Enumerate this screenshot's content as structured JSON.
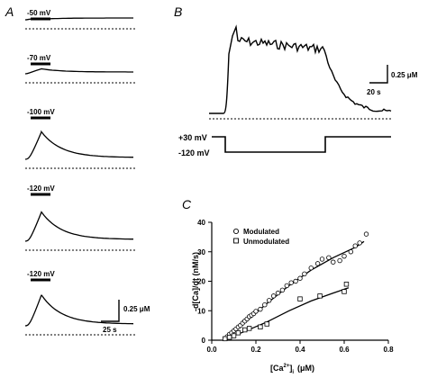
{
  "panel_labels": {
    "a": "A",
    "b": "B",
    "c": "C"
  },
  "panel_a": {
    "traces": [
      {
        "voltage_label": "-50 mV",
        "peak": 0.07
      },
      {
        "voltage_label": "-70 mV",
        "peak": 0.12
      },
      {
        "voltage_label": "-100 mV",
        "peak": 0.38
      },
      {
        "voltage_label": "-120 mV",
        "peak": 0.4
      },
      {
        "voltage_label": "-120 mV",
        "peak": 0.42
      }
    ],
    "scale_y_label": "0.25 μM",
    "scale_x_label": "25 s"
  },
  "panel_b": {
    "scale_y_label": "0.25 μM",
    "scale_x_label": "20 s",
    "protocol": {
      "holding_label": "+30 mV",
      "step_label": "-120 mV"
    }
  },
  "chart_data": {
    "type": "scatter",
    "title": "",
    "xlabel": "[Ca2+]i (μM)",
    "xlabel_parts": {
      "main": "[Ca",
      "sup": "2+",
      "close": "]",
      "sub": "i",
      "unit": "(μM)"
    },
    "ylabel": "-d[Ca]/dt (nM/s)",
    "xlim": [
      0,
      0.8
    ],
    "ylim": [
      0,
      40
    ],
    "x_ticks": [
      "0.0",
      "0.2",
      "0.4",
      "0.6",
      "0.8"
    ],
    "y_ticks": [
      "0",
      "10",
      "20",
      "30",
      "40"
    ],
    "legend_position": "top-left",
    "series": [
      {
        "name": "Modulated",
        "marker": "circle",
        "points": [
          [
            0.06,
            0.5
          ],
          [
            0.07,
            1.2
          ],
          [
            0.08,
            2.0
          ],
          [
            0.09,
            2.5
          ],
          [
            0.1,
            3.2
          ],
          [
            0.11,
            3.8
          ],
          [
            0.12,
            4.5
          ],
          [
            0.13,
            5.0
          ],
          [
            0.14,
            5.8
          ],
          [
            0.15,
            6.5
          ],
          [
            0.16,
            7.2
          ],
          [
            0.17,
            8.0
          ],
          [
            0.18,
            8.5
          ],
          [
            0.19,
            9.0
          ],
          [
            0.2,
            9.8
          ],
          [
            0.22,
            10.5
          ],
          [
            0.24,
            12.0
          ],
          [
            0.26,
            13.5
          ],
          [
            0.28,
            15.0
          ],
          [
            0.3,
            16.0
          ],
          [
            0.32,
            17.0
          ],
          [
            0.34,
            18.5
          ],
          [
            0.36,
            19.5
          ],
          [
            0.38,
            20.0
          ],
          [
            0.4,
            21.0
          ],
          [
            0.42,
            22.5
          ],
          [
            0.45,
            24.5
          ],
          [
            0.48,
            26.0
          ],
          [
            0.5,
            27.5
          ],
          [
            0.53,
            28.0
          ],
          [
            0.55,
            26.5
          ],
          [
            0.58,
            27.0
          ],
          [
            0.6,
            28.5
          ],
          [
            0.63,
            30.0
          ],
          [
            0.65,
            32.0
          ],
          [
            0.67,
            33.0
          ],
          [
            0.7,
            36.0
          ]
        ],
        "fit": [
          [
            0.05,
            0.0
          ],
          [
            0.15,
            6.0
          ],
          [
            0.25,
            12.5
          ],
          [
            0.35,
            18.5
          ],
          [
            0.45,
            23.8
          ],
          [
            0.55,
            28.0
          ],
          [
            0.65,
            31.5
          ],
          [
            0.69,
            33.5
          ]
        ]
      },
      {
        "name": "Unmodulated",
        "marker": "square",
        "points": [
          [
            0.06,
            0.5
          ],
          [
            0.08,
            1.0
          ],
          [
            0.1,
            1.5
          ],
          [
            0.12,
            2.5
          ],
          [
            0.15,
            3.5
          ],
          [
            0.17,
            4.0
          ],
          [
            0.22,
            4.5
          ],
          [
            0.25,
            5.5
          ],
          [
            0.4,
            14.0
          ],
          [
            0.49,
            15.0
          ],
          [
            0.6,
            16.5
          ],
          [
            0.61,
            19.0
          ]
        ],
        "fit": [
          [
            0.05,
            0.0
          ],
          [
            0.15,
            3.0
          ],
          [
            0.25,
            6.2
          ],
          [
            0.35,
            10.0
          ],
          [
            0.45,
            13.3
          ],
          [
            0.55,
            16.0
          ],
          [
            0.62,
            17.8
          ]
        ]
      }
    ]
  }
}
